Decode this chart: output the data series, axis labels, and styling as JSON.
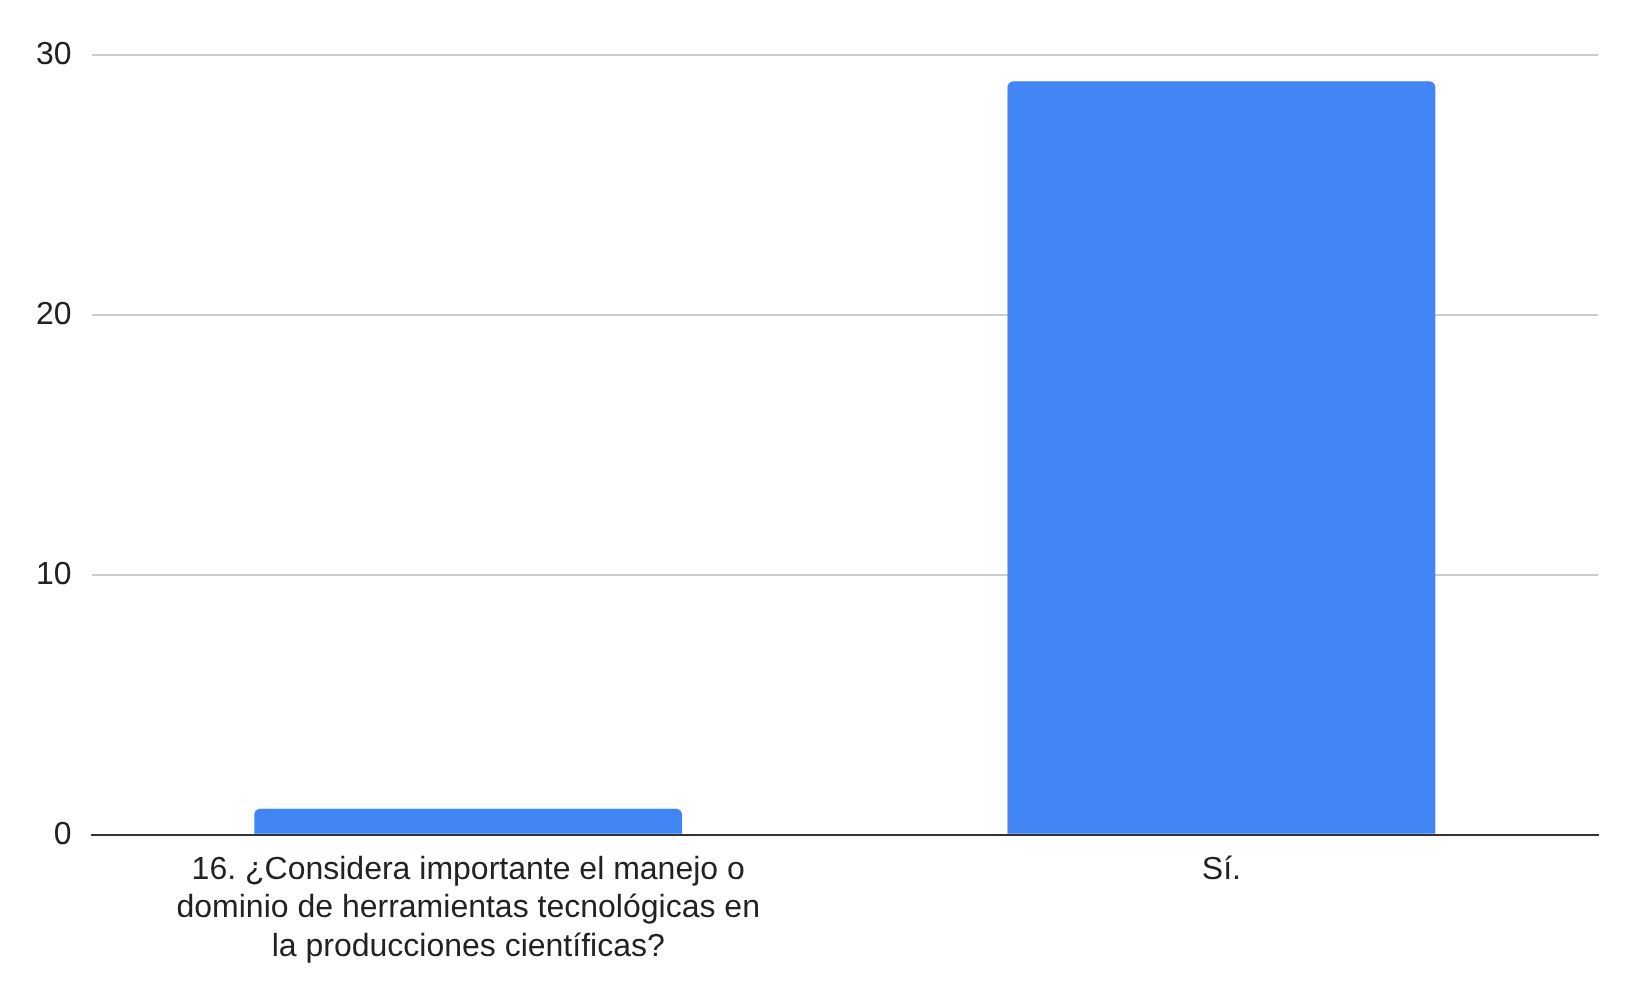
{
  "chart_data": {
    "type": "bar",
    "categories": [
      "16. ¿Considera importante el manejo o dominio de herramientas tecnológicas en la producciones científicas?",
      "Sí."
    ],
    "values": [
      1,
      29
    ],
    "color": "#4285f4",
    "ylim": [
      0,
      30
    ],
    "yticks": [
      0,
      10,
      20,
      30
    ],
    "grid": "y",
    "legend": false
  }
}
